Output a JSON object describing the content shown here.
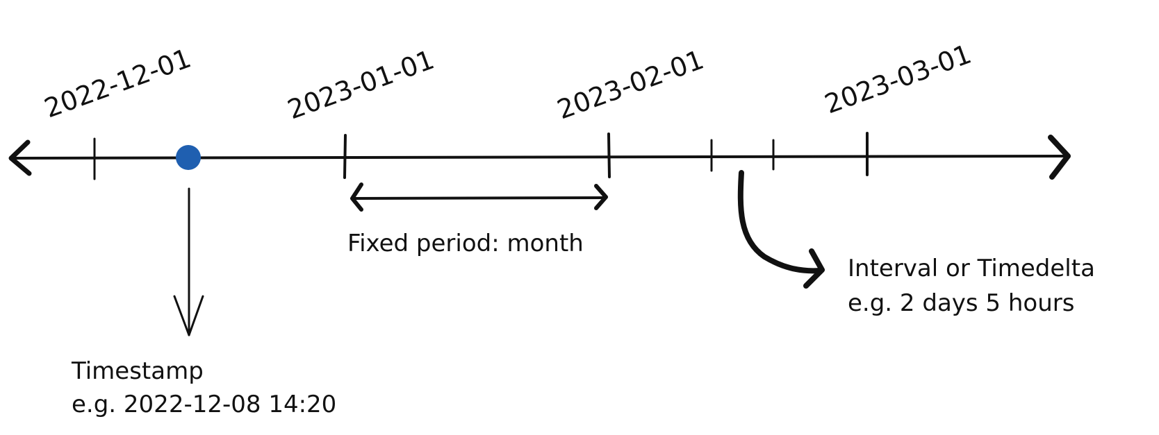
{
  "timeline": {
    "dates": [
      {
        "label": "2022-12-01"
      },
      {
        "label": "2023-01-01"
      },
      {
        "label": "2023-02-01"
      },
      {
        "label": "2023-03-01"
      }
    ],
    "timestamp": {
      "title": "Timestamp",
      "example": "e.g. 2022-12-08 14:20",
      "point_color": "#1f5fb0"
    },
    "period": {
      "title": "Fixed period: month"
    },
    "interval": {
      "title": "Interval or Timedelta",
      "example": "e.g. 2 days 5 hours"
    }
  }
}
